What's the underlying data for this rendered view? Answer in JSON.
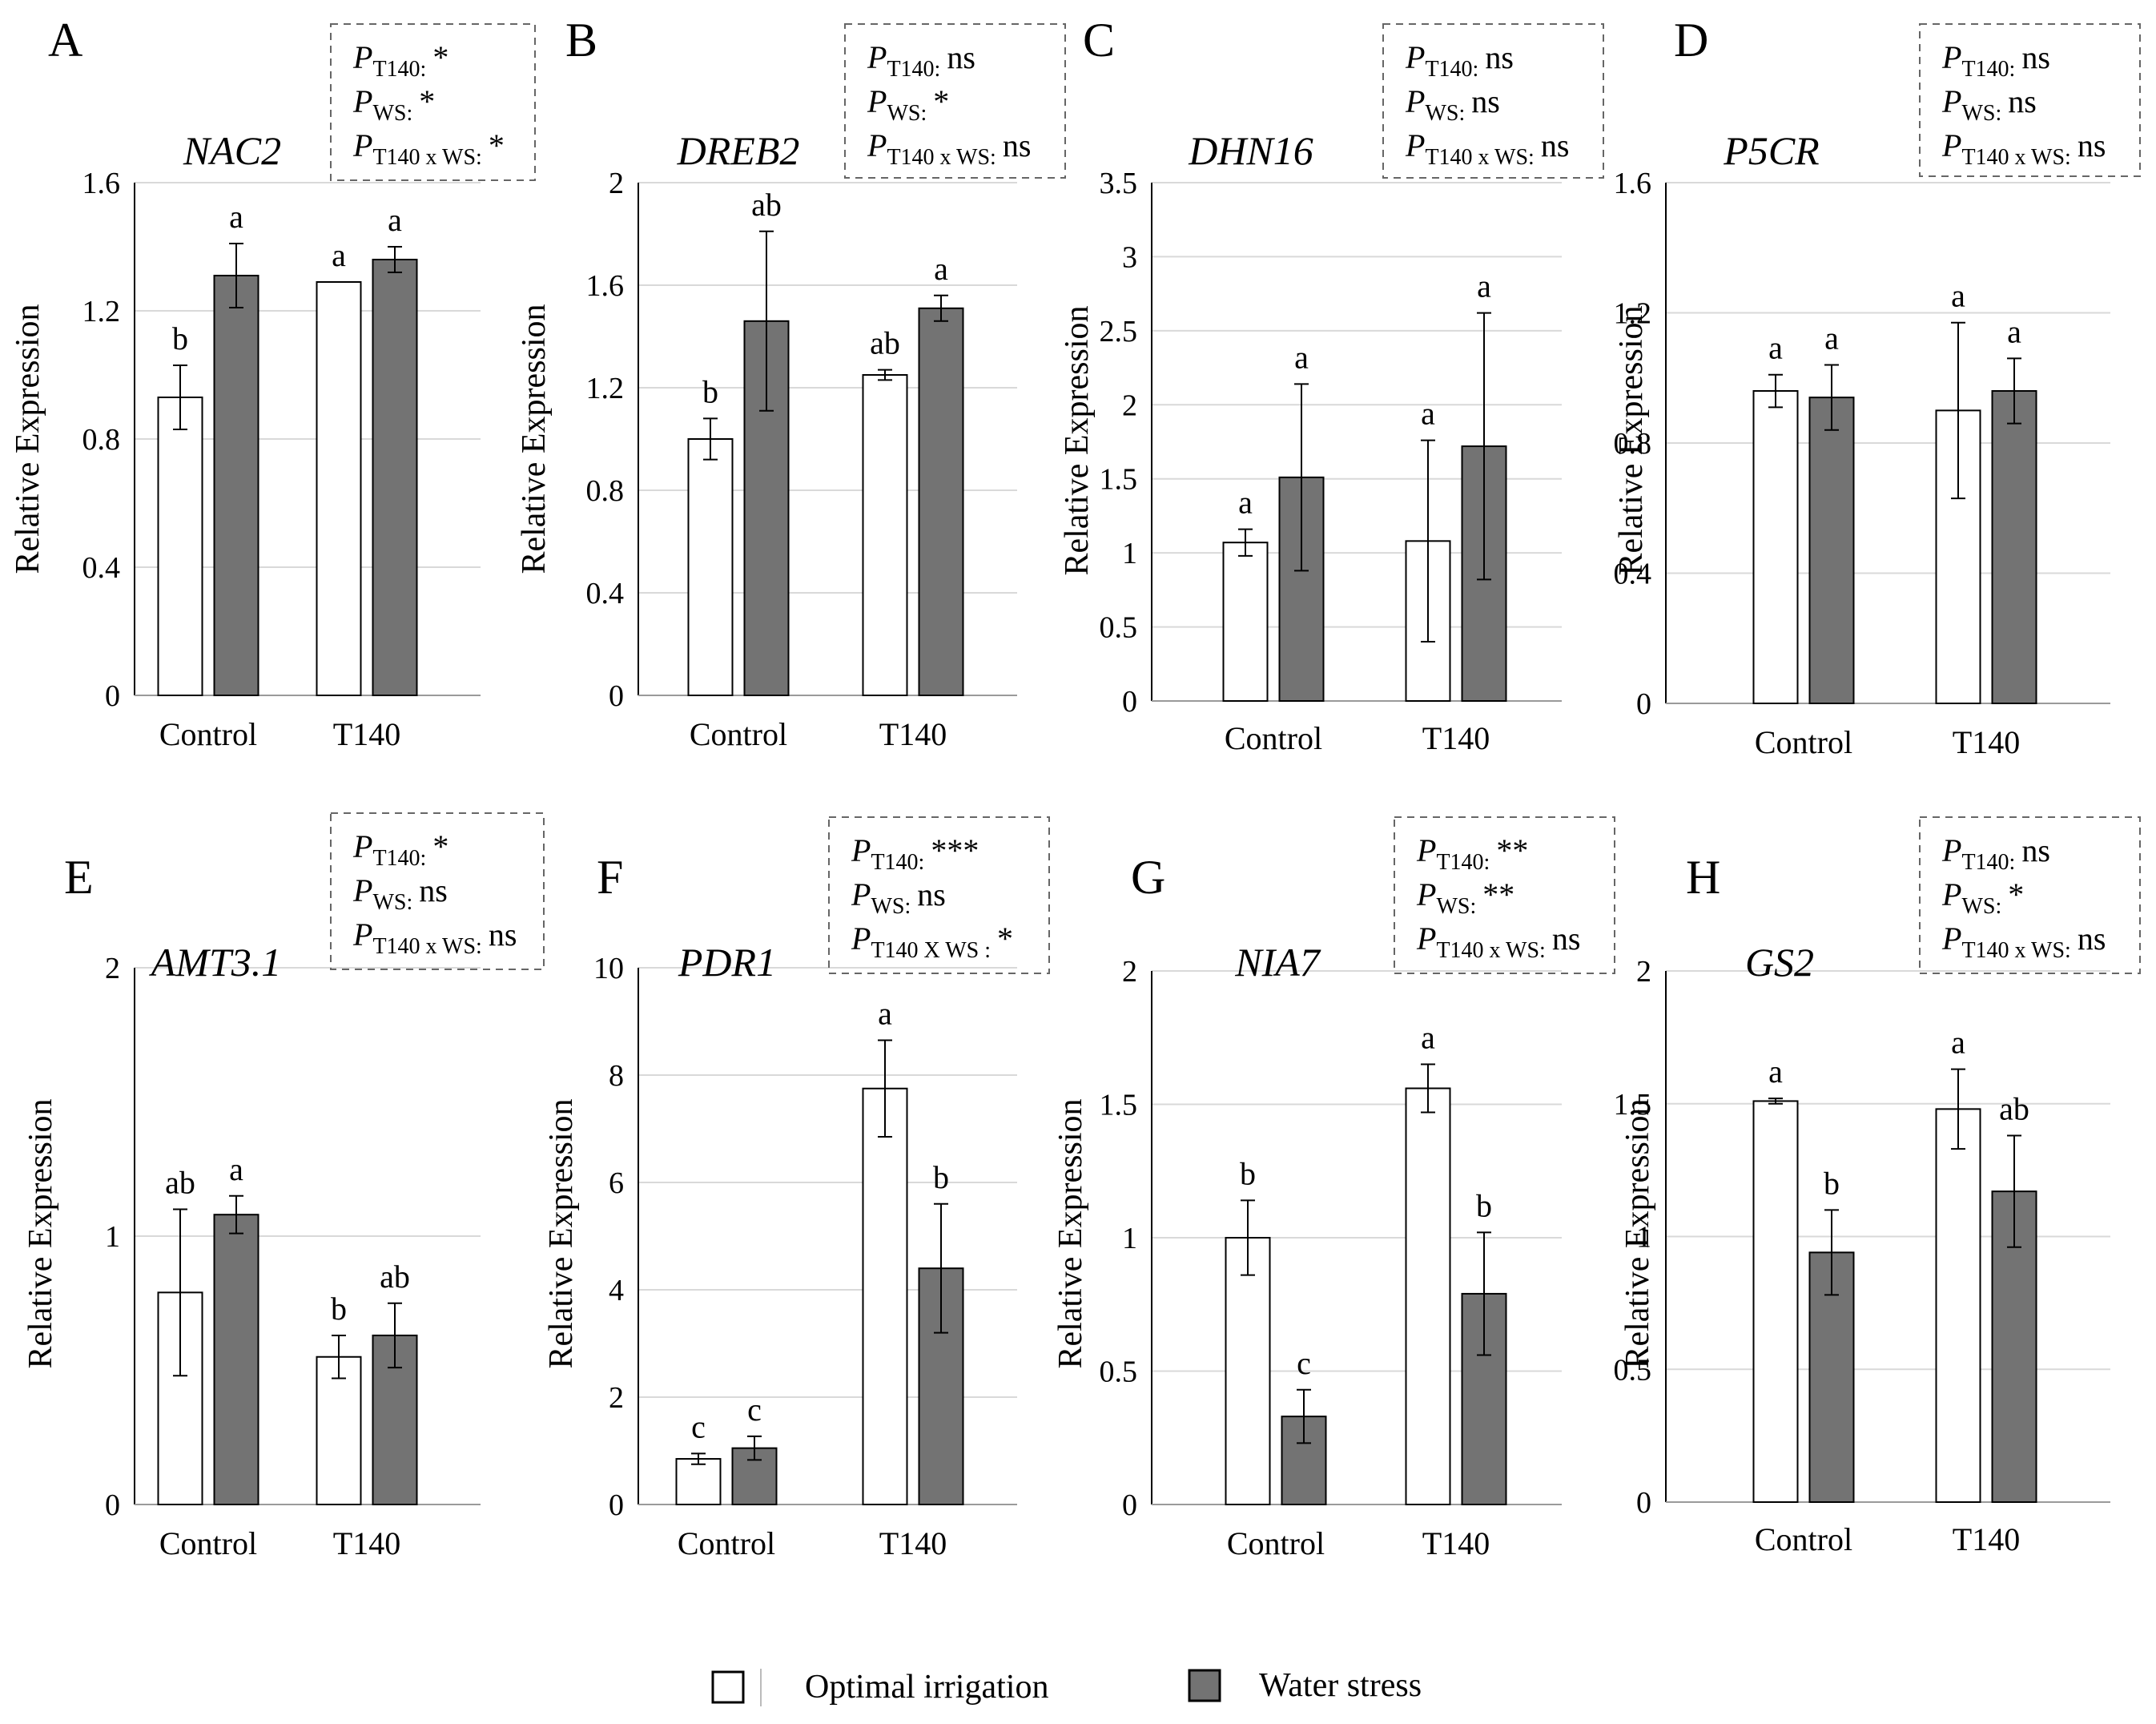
{
  "figure": {
    "panels": [
      {
        "letter": "A",
        "gene": "NAC2",
        "stats": [
          {
            "sub": "T140:",
            "val": "*"
          },
          {
            "sub": "WS:",
            "val": "*"
          },
          {
            "sub": "T140 x WS:",
            "val": "*"
          }
        ]
      },
      {
        "letter": "B",
        "gene": "DREB2",
        "stats": [
          {
            "sub": "T140:",
            "val": "ns"
          },
          {
            "sub": "WS:",
            "val": "*"
          },
          {
            "sub": "T140 x WS:",
            "val": "ns"
          }
        ]
      },
      {
        "letter": "C",
        "gene": "DHN16",
        "stats": [
          {
            "sub": "T140:",
            "val": "ns"
          },
          {
            "sub": "WS:",
            "val": "ns"
          },
          {
            "sub": "T140 x WS:",
            "val": "ns"
          }
        ]
      },
      {
        "letter": "D",
        "gene": "P5CR",
        "stats": [
          {
            "sub": "T140:",
            "val": "ns"
          },
          {
            "sub": "WS:",
            "val": "ns"
          },
          {
            "sub": "T140 x WS:",
            "val": "ns"
          }
        ]
      },
      {
        "letter": "E",
        "gene": "AMT3.1",
        "stats": [
          {
            "sub": "T140:",
            "val": "*"
          },
          {
            "sub": "WS:",
            "val": "ns"
          },
          {
            "sub": "T140 x WS:",
            "val": "ns"
          }
        ]
      },
      {
        "letter": "F",
        "gene": "PDR1",
        "stats": [
          {
            "sub": "T140:",
            "val": "***"
          },
          {
            "sub": "WS:",
            "val": "ns"
          },
          {
            "sub": "T140 X WS :",
            "val": "*"
          }
        ]
      },
      {
        "letter": "G",
        "gene": "NIA7",
        "stats": [
          {
            "sub": "T140:",
            "val": "**"
          },
          {
            "sub": "WS:",
            "val": "**"
          },
          {
            "sub": "T140 x WS:",
            "val": "ns"
          }
        ]
      },
      {
        "letter": "H",
        "gene": "GS2",
        "stats": [
          {
            "sub": "T140:",
            "val": "ns"
          },
          {
            "sub": "WS:",
            "val": "*"
          },
          {
            "sub": "T140 x WS:",
            "val": "ns"
          }
        ]
      }
    ],
    "p_symbol": "P",
    "legend": [
      {
        "label": "Optimal irrigation",
        "color": "#ffffff"
      },
      {
        "label": "Water stress",
        "color": "#737373"
      }
    ]
  },
  "chart_data": [
    {
      "type": "bar",
      "title": "NAC2",
      "ylabel": "Relative Expression",
      "categories": [
        "Control",
        "T140"
      ],
      "yticks": [
        "0",
        "0.4",
        "0.8",
        "1.2",
        "1.6"
      ],
      "ylim": [
        0,
        1.6
      ],
      "grid": true,
      "series": [
        {
          "name": "Optimal irrigation",
          "values": [
            0.93,
            1.29
          ],
          "errors": [
            0.1,
            0.0
          ],
          "letters": [
            "b",
            "a"
          ]
        },
        {
          "name": "Water stress",
          "values": [
            1.31,
            1.36
          ],
          "errors": [
            0.1,
            0.04
          ],
          "letters": [
            "a",
            "a"
          ]
        }
      ]
    },
    {
      "type": "bar",
      "title": "DREB2",
      "ylabel": "Relative Expression",
      "categories": [
        "Control",
        "T140"
      ],
      "yticks": [
        "0",
        "0.4",
        "0.8",
        "1.2",
        "1.6",
        "2"
      ],
      "ylim": [
        0,
        2
      ],
      "grid": true,
      "series": [
        {
          "name": "Optimal irrigation",
          "values": [
            1.0,
            1.25
          ],
          "errors": [
            0.08,
            0.02
          ],
          "letters": [
            "b",
            "ab"
          ]
        },
        {
          "name": "Water stress",
          "values": [
            1.46,
            1.51
          ],
          "errors": [
            0.35,
            0.05
          ],
          "letters": [
            "ab",
            "a"
          ]
        }
      ]
    },
    {
      "type": "bar",
      "title": "DHN16",
      "ylabel": "Relative Expression",
      "categories": [
        "Control",
        "T140"
      ],
      "yticks": [
        "0",
        "0.5",
        "1",
        "1.5",
        "2",
        "2.5",
        "3",
        "3.5"
      ],
      "ylim": [
        0,
        3.5
      ],
      "grid": true,
      "series": [
        {
          "name": "Optimal irrigation",
          "values": [
            1.07,
            1.08
          ],
          "errors": [
            0.09,
            0.68
          ],
          "letters": [
            "a",
            "a"
          ]
        },
        {
          "name": "Water stress",
          "values": [
            1.51,
            1.72
          ],
          "errors": [
            0.63,
            0.9
          ],
          "letters": [
            "a",
            "a"
          ]
        }
      ]
    },
    {
      "type": "bar",
      "title": "P5CR",
      "ylabel": "Relative Expression",
      "categories": [
        "Control",
        "T140"
      ],
      "yticks": [
        "0",
        "0.4",
        "0.8",
        "1.2",
        "1.6"
      ],
      "ylim": [
        0,
        1.6
      ],
      "grid": true,
      "series": [
        {
          "name": "Optimal irrigation",
          "values": [
            0.96,
            0.9
          ],
          "errors": [
            0.05,
            0.27
          ],
          "letters": [
            "a",
            "a"
          ]
        },
        {
          "name": "Water stress",
          "values": [
            0.94,
            0.96
          ],
          "errors": [
            0.1,
            0.1
          ],
          "letters": [
            "a",
            "a"
          ]
        }
      ]
    },
    {
      "type": "bar",
      "title": "AMT3.1",
      "ylabel": "Relative Expression",
      "categories": [
        "Control",
        "T140"
      ],
      "yticks": [
        "0",
        "1",
        "2"
      ],
      "ylim": [
        0,
        2
      ],
      "grid": true,
      "series": [
        {
          "name": "Optimal irrigation",
          "values": [
            0.79,
            0.55
          ],
          "errors": [
            0.31,
            0.08
          ],
          "letters": [
            "ab",
            "b"
          ]
        },
        {
          "name": "Water stress",
          "values": [
            1.08,
            0.63
          ],
          "errors": [
            0.07,
            0.12
          ],
          "letters": [
            "a",
            "ab"
          ]
        }
      ]
    },
    {
      "type": "bar",
      "title": "PDR1",
      "ylabel": "Relative Expression",
      "categories": [
        "Control",
        "T140"
      ],
      "yticks": [
        "0",
        "2",
        "4",
        "6",
        "8",
        "10"
      ],
      "ylim": [
        0,
        10
      ],
      "grid": true,
      "series": [
        {
          "name": "Optimal irrigation",
          "values": [
            0.85,
            7.75
          ],
          "errors": [
            0.1,
            0.9
          ],
          "letters": [
            "c",
            "a"
          ]
        },
        {
          "name": "Water stress",
          "values": [
            1.05,
            4.4
          ],
          "errors": [
            0.22,
            1.2
          ],
          "letters": [
            "c",
            "b"
          ]
        }
      ]
    },
    {
      "type": "bar",
      "title": "NIA7",
      "ylabel": "Relative Expression",
      "categories": [
        "Control",
        "T140"
      ],
      "yticks": [
        "0",
        "0.5",
        "1",
        "1.5",
        "2"
      ],
      "ylim": [
        0,
        2
      ],
      "grid": true,
      "series": [
        {
          "name": "Optimal irrigation",
          "values": [
            1.0,
            1.56
          ],
          "errors": [
            0.14,
            0.09
          ],
          "letters": [
            "b",
            "a"
          ]
        },
        {
          "name": "Water stress",
          "values": [
            0.33,
            0.79
          ],
          "errors": [
            0.1,
            0.23
          ],
          "letters": [
            "c",
            "b"
          ]
        }
      ]
    },
    {
      "type": "bar",
      "title": "GS2",
      "ylabel": "Relative Expression",
      "categories": [
        "Control",
        "T140"
      ],
      "yticks": [
        "0",
        "0.5",
        "1",
        "1.5",
        "2"
      ],
      "ylim": [
        0,
        2
      ],
      "grid": true,
      "series": [
        {
          "name": "Optimal irrigation",
          "values": [
            1.51,
            1.48
          ],
          "errors": [
            0.01,
            0.15
          ],
          "letters": [
            "a",
            "a"
          ]
        },
        {
          "name": "Water stress",
          "values": [
            0.94,
            1.17
          ],
          "errors": [
            0.16,
            0.21
          ],
          "letters": [
            "b",
            "ab"
          ]
        }
      ]
    }
  ]
}
